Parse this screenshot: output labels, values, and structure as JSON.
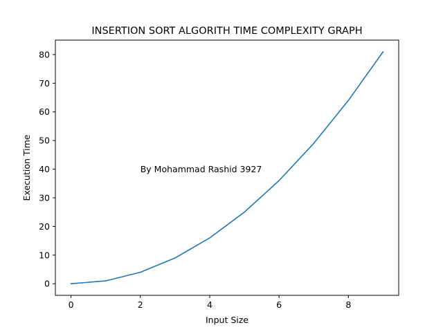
{
  "chart_data": {
    "type": "line",
    "title": "INSERTION SORT ALGORITH TIME COMPLEXITY GRAPH",
    "xlabel": "Input Size",
    "ylabel": "Execution Time",
    "xlim": [
      -0.45,
      9.45
    ],
    "ylim": [
      -4.05,
      85.05
    ],
    "x_ticks": [
      0,
      2,
      4,
      6,
      8
    ],
    "y_ticks": [
      0,
      10,
      20,
      30,
      40,
      50,
      60,
      70,
      80
    ],
    "grid": false,
    "series": [
      {
        "color": "#1f77b4",
        "x": [
          0,
          1,
          2,
          3,
          4,
          5,
          6,
          7,
          8,
          9
        ],
        "y": [
          0,
          1,
          4,
          9,
          16,
          25,
          36,
          49,
          64,
          81
        ]
      }
    ],
    "annotations": [
      {
        "text": "By Mohammad Rashid 3927",
        "x": 2,
        "y": 40
      }
    ]
  }
}
